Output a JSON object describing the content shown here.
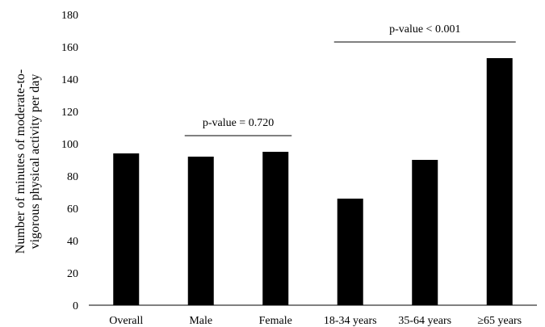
{
  "chart_data": {
    "type": "bar",
    "ylabel_line1": "Number of minutes of moderate-to-",
    "ylabel_line2": "vigorous physical activity per day",
    "xlabel": "",
    "categories": [
      "Overall",
      "Male",
      "Female",
      "18-34 years",
      "35-64 years",
      "≥65 years"
    ],
    "values": [
      94,
      92,
      95,
      66,
      90,
      153
    ],
    "ylim": [
      0,
      180
    ],
    "yticks": [
      0,
      20,
      40,
      60,
      80,
      100,
      120,
      140,
      160,
      180
    ],
    "bar_color": "#000000",
    "grid": false,
    "legend": "none",
    "annotations": [
      {
        "text": "p-value = 0.720",
        "from_category": 1,
        "to_category": 2,
        "y": 105
      },
      {
        "text": "p-value < 0.001",
        "from_category": 3,
        "to_category": 5,
        "y": 163
      }
    ]
  }
}
